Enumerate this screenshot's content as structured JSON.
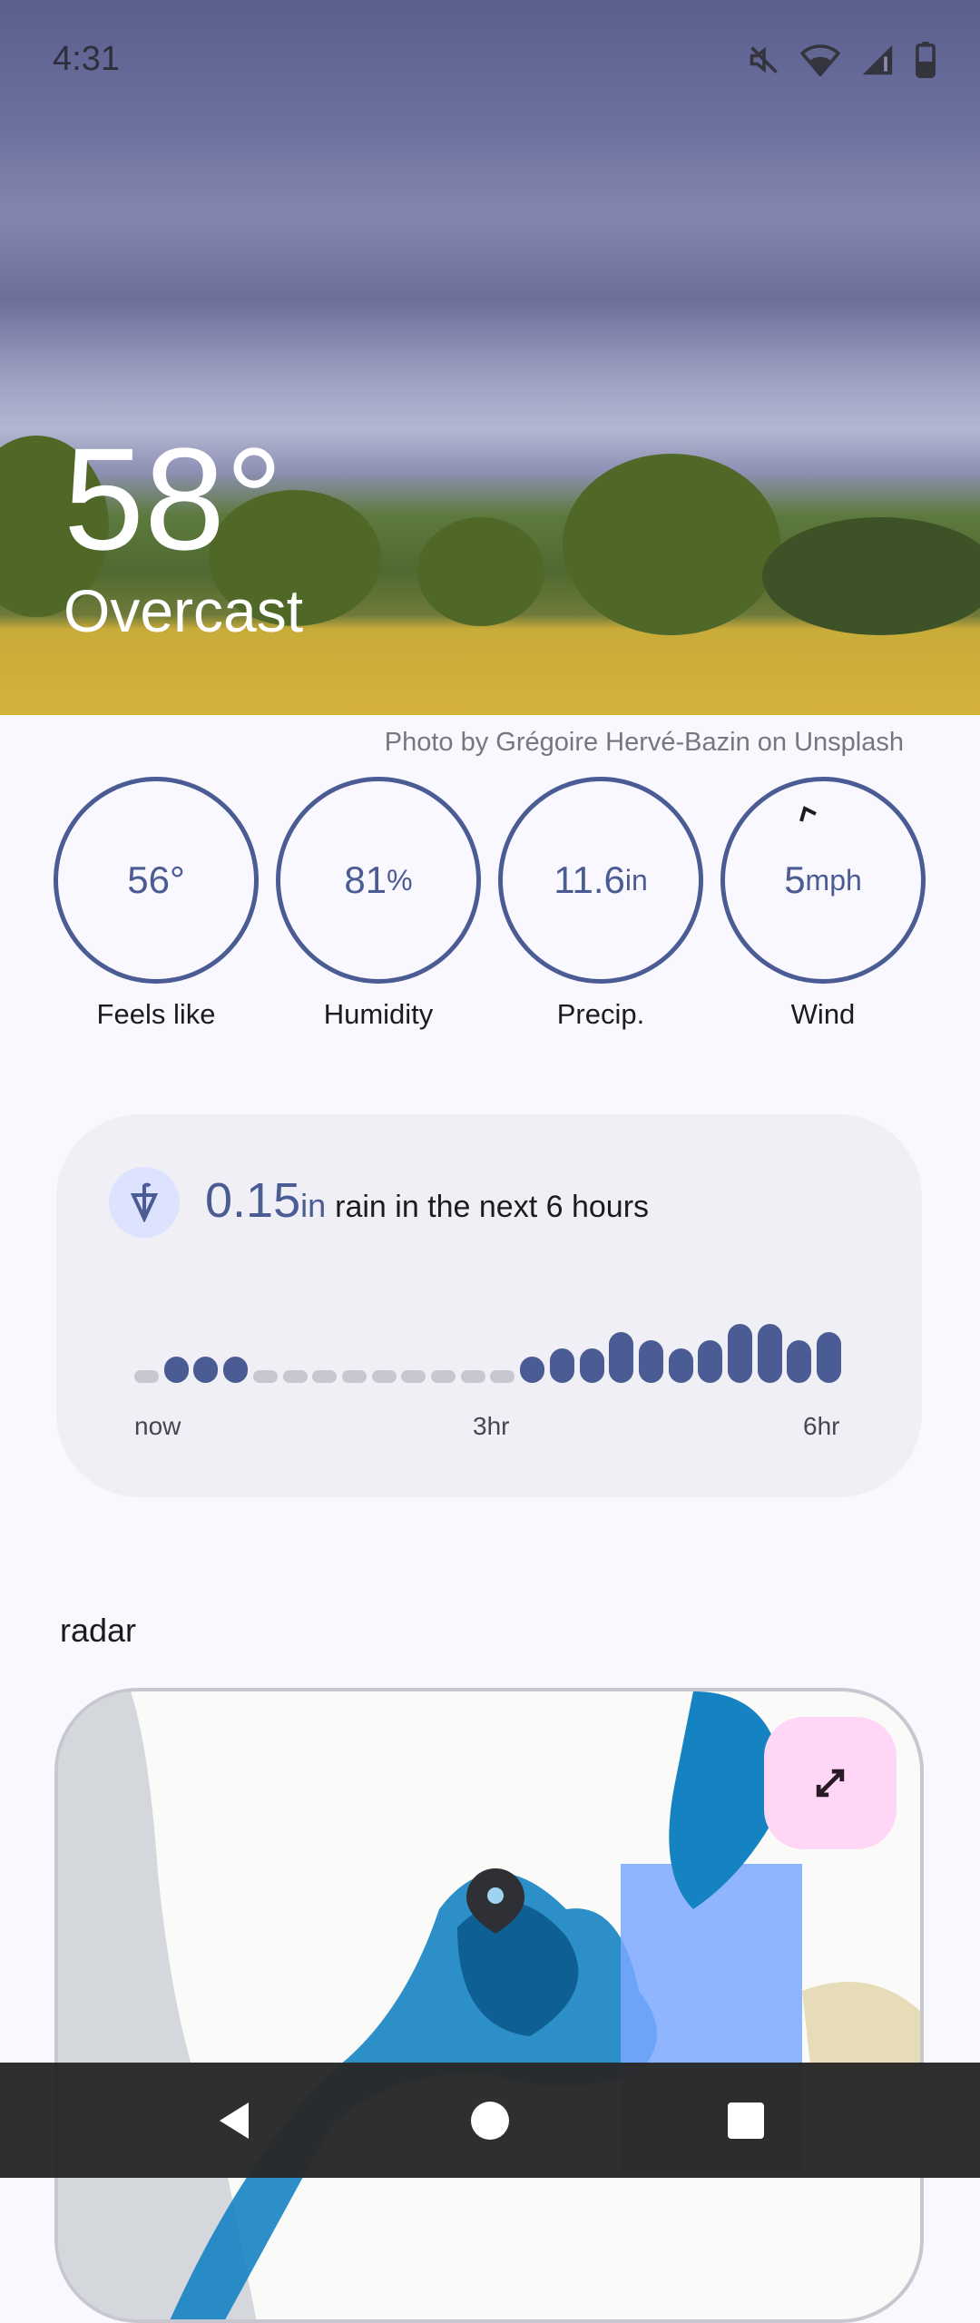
{
  "status_bar": {
    "time": "4:31",
    "icons": [
      "mute-icon",
      "wifi-icon",
      "signal-icon",
      "battery-icon"
    ]
  },
  "hero": {
    "temperature": "58°",
    "condition": "Overcast",
    "attribution": "Photo by Grégoire Hervé-Bazin on Unsplash"
  },
  "stats": [
    {
      "value": "56°",
      "unit": "",
      "label": "Feels like"
    },
    {
      "value": "81",
      "unit": "%",
      "label": "Humidity"
    },
    {
      "value": "11.6",
      "unit": "in",
      "label": "Precip."
    },
    {
      "value": "5",
      "unit": "mph",
      "label": "Wind"
    }
  ],
  "rain_card": {
    "amount": "0.15",
    "unit": "in",
    "text": "rain in the next 6 hours",
    "icon": "umbrella-icon",
    "chart_data": {
      "type": "bar",
      "x_labels": [
        "now",
        "3hr",
        "6hr"
      ],
      "values": [
        0,
        1,
        1,
        1,
        0,
        0,
        0,
        0,
        0,
        0,
        0,
        0,
        0,
        1,
        2,
        2,
        4,
        3,
        2,
        3,
        5,
        5,
        3,
        4
      ]
    }
  },
  "radar": {
    "title": "radar",
    "expand_icon": "expand-icon"
  },
  "colors": {
    "accent": "#4b5b93",
    "inactive_bar": "#c8c7d0",
    "expand_bg": "#ffd6f5"
  },
  "nav": {
    "icons": [
      "back-icon",
      "home-icon",
      "recents-icon"
    ]
  }
}
